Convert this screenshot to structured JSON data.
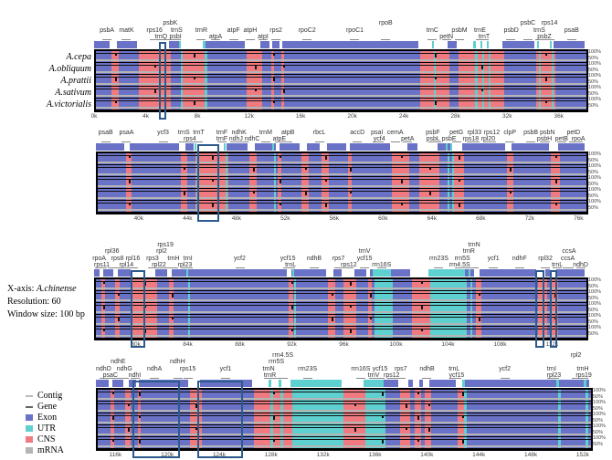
{
  "colors": {
    "exon": "#6a72c8",
    "utr": "#5fd0d0",
    "cns": "#f07a7f",
    "mrna": "#b5b5b5",
    "gene": "#888888",
    "box": "#2d5a8c"
  },
  "species": [
    "A.cepa",
    "A.obliquum",
    "A.prattii",
    "A.sativum",
    "A.victorialis"
  ],
  "info": {
    "xaxis_label": "X-axis:",
    "xaxis_species": "A.chinense",
    "resolution": "Resolution: 60",
    "window": "Window size: 100 bp"
  },
  "legend": [
    {
      "label": "Contig",
      "type": "contig"
    },
    {
      "label": "Gene",
      "type": "gene"
    },
    {
      "label": "Exon",
      "type": "exon"
    },
    {
      "label": "UTR",
      "type": "utr"
    },
    {
      "label": "CNS",
      "type": "cns"
    },
    {
      "label": "mRNA",
      "type": "mrna"
    }
  ],
  "pct_labels": [
    "100%",
    "50%"
  ],
  "chart_data": {
    "type": "conservation-plot",
    "panels": [
      {
        "range": [
          0,
          38
        ],
        "ticks": [
          "0k",
          "4k",
          "8k",
          "12k",
          "16k",
          "20k",
          "24k",
          "28k",
          "32k",
          "36k"
        ],
        "tick_values": [
          0,
          4,
          8,
          12,
          16,
          20,
          24,
          28,
          32,
          36
        ],
        "cns": [
          [
            1.2,
            1.75
          ],
          [
            3.3,
            5.8
          ],
          [
            6.6,
            8.5
          ],
          [
            11.7,
            12.9
          ],
          [
            13.6,
            13.8
          ],
          [
            14.4,
            14.6
          ],
          [
            25.1,
            27.4
          ],
          [
            28.1,
            31.6
          ],
          [
            34.1,
            35.6
          ]
        ],
        "utr": [
          [
            6.55,
            6.7
          ],
          [
            8.45,
            8.6
          ],
          [
            26.2,
            26.35
          ],
          [
            29.4,
            29.55
          ],
          [
            29.9,
            30.1
          ],
          [
            30.4,
            30.55
          ],
          [
            34.3,
            34.45
          ],
          [
            35.3,
            35.45
          ]
        ],
        "genes": [
          {
            "l": "psbA",
            "k": 1.0,
            "r": 0
          },
          {
            "l": "matK",
            "k": 2.5,
            "r": 0
          },
          {
            "l": "rps16",
            "k": 4.7,
            "r": 0
          },
          {
            "l": "psbK",
            "k": 5.9,
            "r": 0
          },
          {
            "l": "trnS",
            "k": 6.4,
            "r": -1
          },
          {
            "l": "trnQ",
            "k": 5.2,
            "r": 1
          },
          {
            "l": "psbI",
            "k": 6.3,
            "r": 1
          },
          {
            "l": "trnR",
            "k": 8.3,
            "r": 0
          },
          {
            "l": "atpA",
            "k": 9.4,
            "r": 1
          },
          {
            "l": "atpF",
            "k": 10.8,
            "r": 0
          },
          {
            "l": "atpH",
            "k": 12.1,
            "r": 0
          },
          {
            "l": "atpI",
            "k": 13.1,
            "r": 0
          },
          {
            "l": "rps2",
            "k": 14.1,
            "r": 0
          },
          {
            "l": "rpoC2",
            "k": 16.5,
            "r": 0
          },
          {
            "l": "rpoC1",
            "k": 20.2,
            "r": 0
          },
          {
            "l": "rpoB",
            "k": 22.6,
            "r": -1
          },
          {
            "l": "trnC",
            "k": 26.2,
            "r": 0
          },
          {
            "l": "petN",
            "k": 27.3,
            "r": 0
          },
          {
            "l": "psbM",
            "k": 28.3,
            "r": 1
          },
          {
            "l": "trnE",
            "k": 29.9,
            "r": 0
          },
          {
            "l": "trnT",
            "k": 30.2,
            "r": 1
          },
          {
            "l": "psbD",
            "k": 32.3,
            "r": 0
          },
          {
            "l": "psbC",
            "k": 33.6,
            "r": -1
          },
          {
            "l": "trnS",
            "k": 34.5,
            "r": 0
          },
          {
            "l": "psbZ",
            "k": 34.9,
            "r": 1
          },
          {
            "l": "rps14",
            "k": 35.3,
            "r": 0
          },
          {
            "l": "psaB",
            "k": 37.0,
            "r": 0
          }
        ]
      },
      {
        "range": [
          36.5,
          76.5
        ],
        "ticks": [
          "40k",
          "44k",
          "48k",
          "52k",
          "56k",
          "60k",
          "64k",
          "68k",
          "72k",
          "76k"
        ],
        "tick_values": [
          40,
          44,
          48,
          52,
          56,
          60,
          64,
          68,
          72,
          76
        ],
        "cns": [
          [
            38.8,
            39.3
          ],
          [
            43.3,
            43.8
          ],
          [
            44.5,
            47.2
          ],
          [
            48.9,
            49.5
          ],
          [
            51.2,
            51.5
          ],
          [
            53.2,
            53.8
          ],
          [
            54.8,
            55.4
          ],
          [
            57.0,
            57.3
          ],
          [
            60.6,
            62.0
          ],
          [
            62.8,
            64.5
          ],
          [
            65.5,
            66.5
          ],
          [
            70.0,
            70.5
          ],
          [
            73.6,
            74.3
          ]
        ],
        "utr": [
          [
            44.6,
            44.75
          ],
          [
            47.0,
            47.15
          ],
          [
            50.9,
            51.05
          ],
          [
            65.1,
            65.25
          ],
          [
            65.5,
            65.65
          ]
        ],
        "genes": [
          {
            "l": "psaA",
            "k": 39.0,
            "r": -1
          },
          {
            "l": "psaB",
            "k": 37.3,
            "r": 0
          },
          {
            "l": "ycf3",
            "k": 42.0,
            "r": 0
          },
          {
            "l": "trnS",
            "k": 43.7,
            "r": 0
          },
          {
            "l": "rps4",
            "k": 44.2,
            "r": 1
          },
          {
            "l": "trnT",
            "k": 44.9,
            "r": 0
          },
          {
            "l": "trnF",
            "k": 46.8,
            "r": -1
          },
          {
            "l": "trnF",
            "k": 46.8,
            "r": 0
          },
          {
            "l": "ndhC",
            "k": 48.6,
            "r": -1
          },
          {
            "l": "ndhK",
            "k": 48.2,
            "r": 0
          },
          {
            "l": "ndhJ",
            "k": 47.9,
            "r": 1
          },
          {
            "l": "trnM",
            "k": 50.4,
            "r": 0
          },
          {
            "l": "atpB",
            "k": 52.2,
            "r": -1
          },
          {
            "l": "atpE",
            "k": 51.5,
            "r": 1
          },
          {
            "l": "rbcL",
            "k": 54.8,
            "r": 0
          },
          {
            "l": "accD",
            "k": 57.9,
            "r": 0
          },
          {
            "l": "psaI",
            "k": 59.5,
            "r": 0
          },
          {
            "l": "ycf4",
            "k": 59.7,
            "r": 1
          },
          {
            "l": "cemA",
            "k": 61.0,
            "r": 0
          },
          {
            "l": "petA",
            "k": 62.0,
            "r": 1
          },
          {
            "l": "psbF",
            "k": 64.1,
            "r": -1
          },
          {
            "l": "psbE",
            "k": 64.4,
            "r": 0
          },
          {
            "l": "psbL",
            "k": 64.1,
            "r": 1
          },
          {
            "l": "petG",
            "k": 66.0,
            "r": 1
          },
          {
            "l": "rpl33",
            "k": 67.5,
            "r": 0
          },
          {
            "l": "rpl20",
            "k": 68.6,
            "r": 0
          },
          {
            "l": "rps18",
            "k": 67.2,
            "r": 1
          },
          {
            "l": "rps12",
            "k": 68.9,
            "r": 1
          },
          {
            "l": "clpP",
            "k": 70.4,
            "r": 0
          },
          {
            "l": "psbB",
            "k": 72.1,
            "r": 0
          },
          {
            "l": "psbN",
            "k": 73.3,
            "r": 0
          },
          {
            "l": "psbH",
            "k": 73.2,
            "r": 1
          },
          {
            "l": "petB",
            "k": 74.6,
            "r": 0
          },
          {
            "l": "petD",
            "k": 75.6,
            "r": 0
          },
          {
            "l": "rpoA",
            "k": 76.0,
            "r": 1
          }
        ]
      },
      {
        "range": [
          76.8,
          114.5
        ],
        "ticks": [
          "80k",
          "84k",
          "88k",
          "92k",
          "96k",
          "100k",
          "104k",
          "108k",
          "112k"
        ],
        "tick_values": [
          80,
          84,
          88,
          92,
          96,
          100,
          104,
          108,
          112
        ],
        "cns": [
          [
            77.2,
            77.5
          ],
          [
            78.3,
            78.6
          ],
          [
            79.6,
            81.5
          ],
          [
            82.4,
            82.8
          ],
          [
            91.6,
            92.0
          ],
          [
            94.6,
            95.2
          ],
          [
            95.8,
            96.8
          ],
          [
            97.7,
            98.0
          ],
          [
            101.1,
            102.5
          ],
          [
            106.0,
            106.4
          ],
          [
            110.8,
            111.5
          ],
          [
            111.8,
            112.3
          ]
        ],
        "utr": [
          [
            83.9,
            84.05
          ],
          [
            92.0,
            92.15
          ],
          [
            98.2,
            99.6
          ],
          [
            102.5,
            105.3
          ],
          [
            105.6,
            105.75
          ]
        ],
        "genes": [
          {
            "l": "rpoA",
            "k": 77.2,
            "r": 0
          },
          {
            "l": "rpl36",
            "k": 78.2,
            "r": 0
          },
          {
            "l": "rps11",
            "k": 77.4,
            "r": 1
          },
          {
            "l": "rps8",
            "k": 78.6,
            "r": 1
          },
          {
            "l": "rpl14",
            "k": 79.3,
            "r": 0
          },
          {
            "l": "rpl16",
            "k": 79.8,
            "r": 1
          },
          {
            "l": "rpl2",
            "k": 82.0,
            "r": -1
          },
          {
            "l": "rps3",
            "k": 81.3,
            "r": 0
          },
          {
            "l": "rps19",
            "k": 82.3,
            "r": 0
          },
          {
            "l": "rpl22",
            "k": 81.8,
            "r": 1
          },
          {
            "l": "trnH",
            "k": 82.9,
            "r": 1
          },
          {
            "l": "rpl23",
            "k": 83.8,
            "r": 0
          },
          {
            "l": "trnI",
            "k": 84.0,
            "r": 1
          },
          {
            "l": "ycf2",
            "k": 88.0,
            "r": 0
          },
          {
            "l": "ycf15",
            "k": 91.7,
            "r": 0
          },
          {
            "l": "trnL",
            "k": 91.9,
            "r": 1
          },
          {
            "l": "ndhB",
            "k": 93.7,
            "r": 0
          },
          {
            "l": "rps7",
            "k": 95.6,
            "r": 0
          },
          {
            "l": "rps12",
            "k": 96.4,
            "r": 1
          },
          {
            "l": "ycf15",
            "k": 97.6,
            "r": 0
          },
          {
            "l": "trnV",
            "k": 97.6,
            "r": 1
          },
          {
            "l": "rrn16S",
            "k": 98.9,
            "r": 0
          },
          {
            "l": "rrn23S",
            "k": 103.3,
            "r": 0
          },
          {
            "l": "rrn4.5S",
            "k": 104.9,
            "r": 0
          },
          {
            "l": "trnR",
            "k": 105.6,
            "r": 0
          },
          {
            "l": "rrn5S",
            "k": 105.1,
            "r": 1
          },
          {
            "l": "trnN",
            "k": 106.0,
            "r": 1
          },
          {
            "l": "ycf1",
            "k": 107.5,
            "r": 0
          },
          {
            "l": "ndhF",
            "k": 109.5,
            "r": 0
          },
          {
            "l": "rpl32",
            "k": 111.5,
            "r": 0
          },
          {
            "l": "trnL",
            "k": 112.4,
            "r": 1
          },
          {
            "l": "ccsA",
            "k": 113.3,
            "r": -1
          },
          {
            "l": "ccsA",
            "k": 113.2,
            "r": 0
          },
          {
            "l": "ndhD",
            "k": 114.2,
            "r": 0
          }
        ]
      },
      {
        "range": [
          114.5,
          152.5
        ],
        "ticks": [
          "116k",
          "120k",
          "124k",
          "128k",
          "132k",
          "136k",
          "140k",
          "144k",
          "148k",
          "152k"
        ],
        "tick_values": [
          116,
          120,
          124,
          128,
          132,
          136,
          140,
          144,
          148,
          152
        ],
        "cns": [
          [
            115.5,
            115.8
          ],
          [
            116.6,
            117.0
          ],
          [
            117.6,
            117.8
          ],
          [
            121.6,
            122.5
          ],
          [
            126.5,
            129.5
          ],
          [
            133.4,
            135.1
          ],
          [
            136.2,
            136.5
          ],
          [
            137.8,
            138.6
          ],
          [
            138.9,
            139.4
          ],
          [
            139.7,
            140.2
          ],
          [
            142.2,
            142.9
          ]
        ],
        "utr": [
          [
            127.8,
            128.0
          ],
          [
            128.6,
            128.8
          ],
          [
            129.5,
            133.4
          ],
          [
            135.1,
            136.7
          ],
          [
            142.7,
            142.9
          ],
          [
            150.0,
            150.2
          ],
          [
            152.1,
            152.3
          ]
        ],
        "genes": [
          {
            "l": "ndhD",
            "k": 115.1,
            "r": 0
          },
          {
            "l": "psaC",
            "k": 115.6,
            "r": 1
          },
          {
            "l": "ndhE",
            "k": 116.2,
            "r": 0
          },
          {
            "l": "ndhG",
            "k": 116.7,
            "r": 1
          },
          {
            "l": "ndhI",
            "k": 117.5,
            "r": 0
          },
          {
            "l": "ndhA",
            "k": 119.0,
            "r": 0
          },
          {
            "l": "ndhH",
            "k": 120.8,
            "r": -1
          },
          {
            "l": "rps15",
            "k": 121.6,
            "r": 0
          },
          {
            "l": "ycf1",
            "k": 124.5,
            "r": 0
          },
          {
            "l": "trnN",
            "k": 127.8,
            "r": 0
          },
          {
            "l": "rrn5S",
            "k": 128.4,
            "r": 0
          },
          {
            "l": "trnR",
            "k": 127.9,
            "r": 1
          },
          {
            "l": "rrn4.5S",
            "k": 128.9,
            "r": 1
          },
          {
            "l": "rrn23S",
            "k": 130.8,
            "r": 0
          },
          {
            "l": "rrn16S",
            "k": 134.9,
            "r": 0
          },
          {
            "l": "trnV",
            "k": 135.9,
            "r": 1
          },
          {
            "l": "ycf15",
            "k": 136.4,
            "r": 0
          },
          {
            "l": "rps12",
            "k": 137.3,
            "r": 1
          },
          {
            "l": "rps7",
            "k": 138.0,
            "r": 0
          },
          {
            "l": "ndhB",
            "k": 140.0,
            "r": 0
          },
          {
            "l": "trnL",
            "k": 142.1,
            "r": 0
          },
          {
            "l": "ycf15",
            "k": 142.3,
            "r": 1
          },
          {
            "l": "ycf2",
            "k": 146.0,
            "r": 0
          },
          {
            "l": "trnI",
            "k": 149.6,
            "r": 0
          },
          {
            "l": "rpl23",
            "k": 149.8,
            "r": 1
          },
          {
            "l": "rpl2",
            "k": 151.5,
            "r": -2
          },
          {
            "l": "trnH",
            "k": 152.0,
            "r": 0
          },
          {
            "l": "rps19",
            "k": 152.1,
            "r": 1
          }
        ]
      }
    ],
    "highlight_boxes_kb": [
      [
        0,
        [
          5.0,
          5.6
        ]
      ],
      [
        1,
        [
          44.8,
          46.6
        ]
      ],
      [
        2,
        [
          79.6,
          80.7
        ]
      ],
      [
        2,
        [
          110.7,
          111.4
        ]
      ],
      [
        2,
        [
          111.8,
          112.4
        ]
      ],
      [
        3,
        [
          117.3,
          121.0
        ]
      ],
      [
        3,
        [
          122.3,
          125.8
        ]
      ]
    ]
  }
}
